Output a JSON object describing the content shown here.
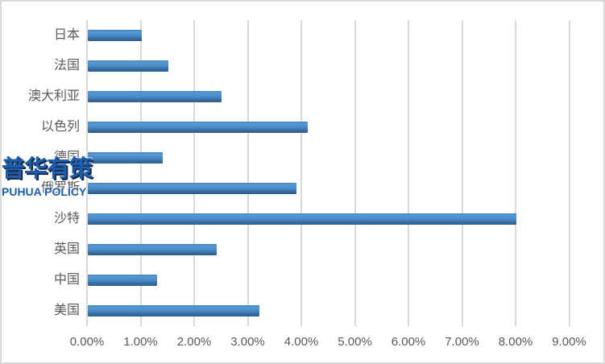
{
  "chart_data": {
    "type": "bar",
    "orientation": "horizontal",
    "title": "",
    "xlabel": "",
    "ylabel": "",
    "categories": [
      "日本",
      "法国",
      "澳大利亚",
      "以色列",
      "德国",
      "俄罗斯",
      "沙特",
      "英国",
      "中国",
      "美国"
    ],
    "values": [
      1.0,
      1.5,
      2.5,
      4.1,
      1.4,
      3.9,
      8.0,
      2.4,
      1.3,
      3.2
    ],
    "value_unit": "%",
    "x_ticks": [
      "0.00%",
      "1.00%",
      "2.00%",
      "3.00%",
      "4.00%",
      "5.00%",
      "6.00%",
      "7.00%",
      "8.00%",
      "9.00%"
    ],
    "x_tick_values": [
      0,
      1,
      2,
      3,
      4,
      5,
      6,
      7,
      8,
      9
    ],
    "xlim": [
      0,
      9
    ],
    "grid": "vertical-only",
    "legend_position": "none",
    "colors": {
      "bar_top": "#5598d6",
      "bar_bottom": "#2d5a85",
      "gridline": "#d9d9d9",
      "axis_text": "#595959",
      "frame_border": "#d9d9d9",
      "background": "#ffffff"
    }
  },
  "watermark": {
    "line1": "普华有策",
    "line2": "PUHUA POLICY",
    "color": "#1d5da9"
  }
}
